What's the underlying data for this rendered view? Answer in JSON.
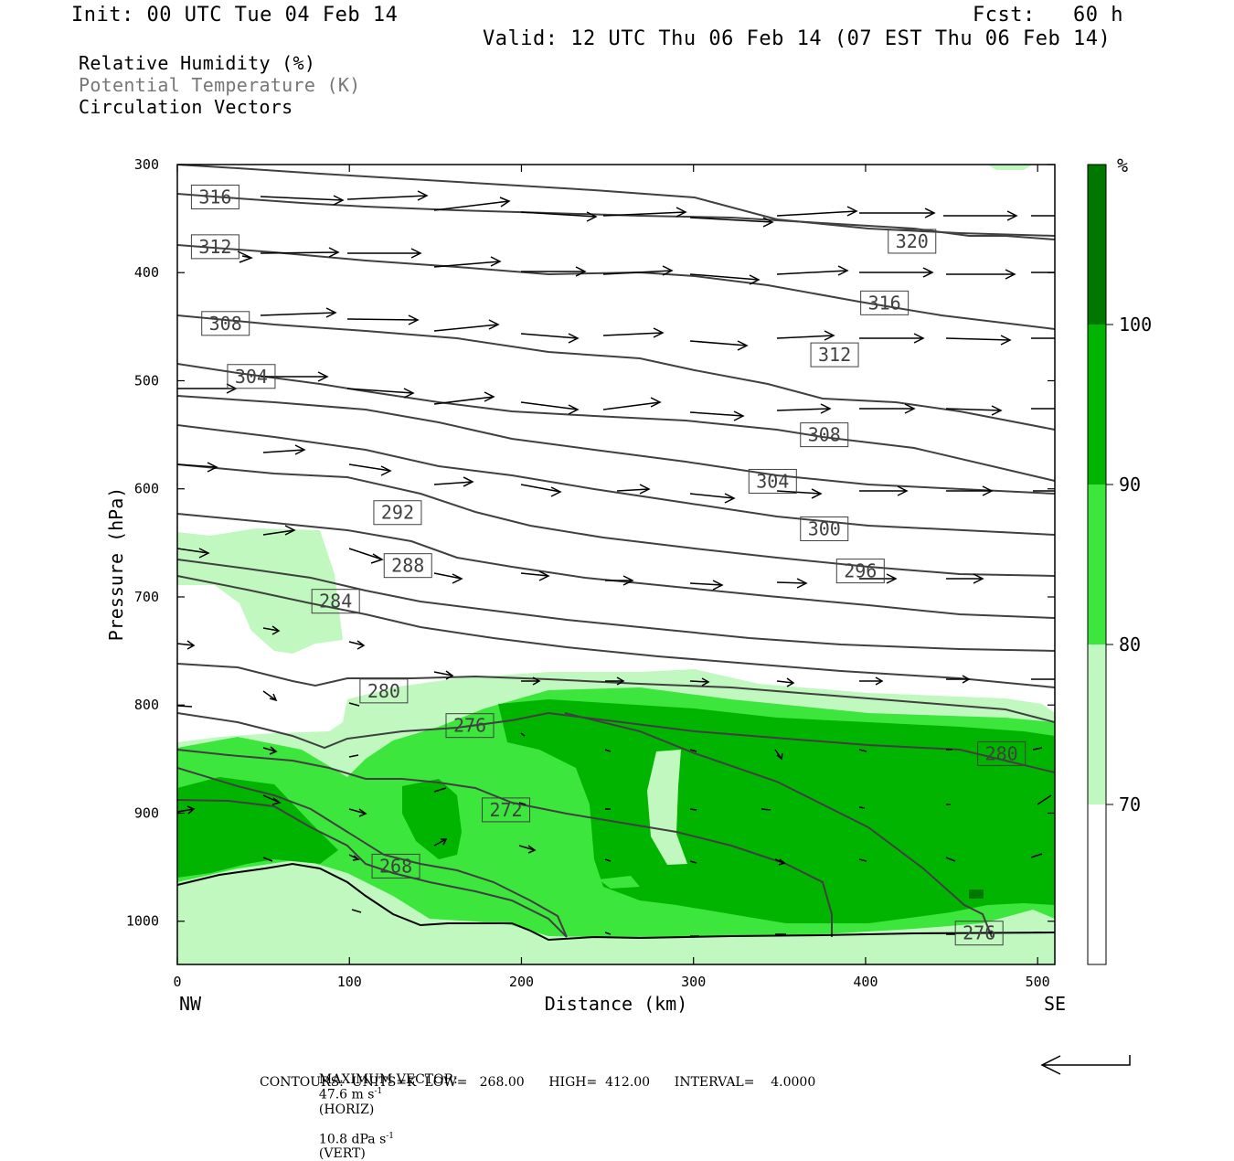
{
  "header": {
    "init": "Init: 00 UTC Tue 04 Feb 14",
    "fcst": "Fcst:   60 h",
    "valid": "Valid: 12 UTC Thu 06 Feb 14 (07 EST Thu 06 Feb 14)"
  },
  "fields": {
    "rh": "Relative Humidity (%)",
    "theta": "Potential Temperature (K)",
    "vectors": "Circulation Vectors"
  },
  "colors": {
    "rh70": "#c0f8c0",
    "rh80": "#3ce63c",
    "rh90": "#00b400",
    "rh100": "#007800",
    "contour": "#404040",
    "terrain": "#000000"
  },
  "footer": {
    "max_vector_label": "MAXIMUM VECTOR:",
    "max_vector_horiz": "47.6 m s",
    "max_vector_horiz_unit": "(HORIZ)",
    "max_vector_vert": "10.8 dPa s",
    "max_vector_vert_unit": "(VERT)",
    "contours_line": "CONTOURS:  UNITS=K  LOW=   268.00      HIGH=  412.00      INTERVAL=    4.0000"
  },
  "chart_data": {
    "type": "contour",
    "xlabel": "Distance (km)",
    "ylabel": "Pressure (hPa)",
    "xlim": [
      0,
      510
    ],
    "ylim": [
      1040,
      300
    ],
    "x_ticks": [
      0,
      100,
      200,
      300,
      400,
      500
    ],
    "y_ticks": [
      300,
      400,
      500,
      600,
      700,
      800,
      900,
      1000
    ],
    "x_end_labels": {
      "left": "NW",
      "right": "SE"
    },
    "colorbar": {
      "unit": "%",
      "levels": [
        70,
        80,
        90,
        100
      ]
    },
    "contour_labels": [
      {
        "label": "316",
        "x": 22,
        "p": 330
      },
      {
        "label": "312",
        "x": 22,
        "p": 376
      },
      {
        "label": "308",
        "x": 28,
        "p": 447
      },
      {
        "label": "304",
        "x": 43,
        "p": 496
      },
      {
        "label": "320",
        "x": 427,
        "p": 371
      },
      {
        "label": "316",
        "x": 411,
        "p": 428
      },
      {
        "label": "312",
        "x": 382,
        "p": 476
      },
      {
        "label": "308",
        "x": 376,
        "p": 550
      },
      {
        "label": "304",
        "x": 346,
        "p": 593
      },
      {
        "label": "300",
        "x": 376,
        "p": 637
      },
      {
        "label": "296",
        "x": 397,
        "p": 676
      },
      {
        "label": "292",
        "x": 128,
        "p": 622
      },
      {
        "label": "288",
        "x": 134,
        "p": 671
      },
      {
        "label": "284",
        "x": 92,
        "p": 704
      },
      {
        "label": "280",
        "x": 120,
        "p": 787
      },
      {
        "label": "280",
        "x": 479,
        "p": 845
      },
      {
        "label": "276",
        "x": 170,
        "p": 819
      },
      {
        "label": "276",
        "x": 466,
        "p": 1011
      },
      {
        "label": "272",
        "x": 191,
        "p": 897
      },
      {
        "label": "268",
        "x": 127,
        "p": 949
      }
    ]
  }
}
